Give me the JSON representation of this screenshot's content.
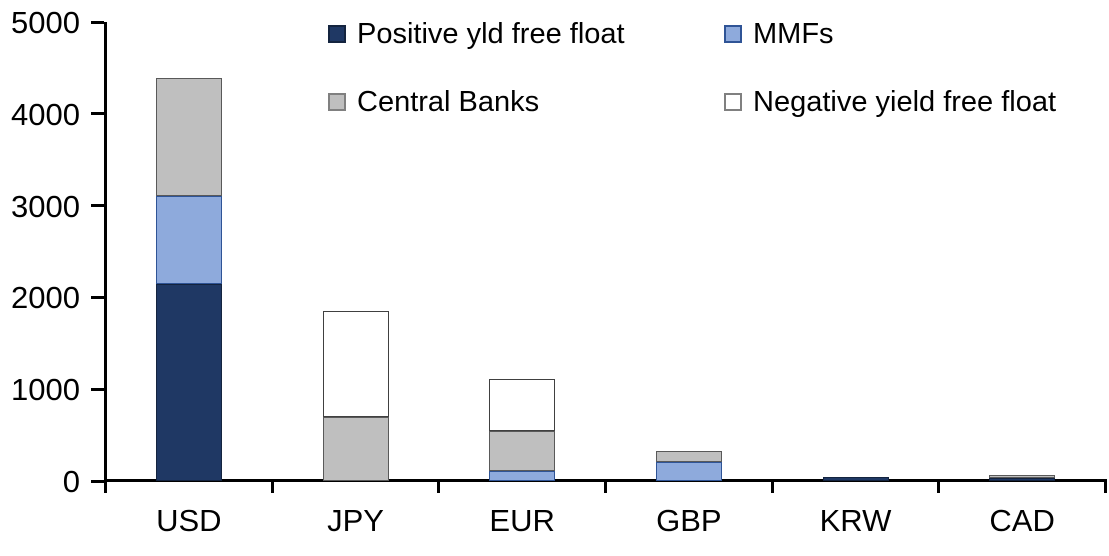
{
  "chart_data": {
    "type": "bar",
    "stacked": true,
    "title": "",
    "xlabel": "",
    "ylabel": "",
    "categories": [
      "USD",
      "JPY",
      "EUR",
      "GBP",
      "KRW",
      "CAD"
    ],
    "series": [
      {
        "name": "Positive yld free float",
        "color": "#1f3864",
        "border_color": "#14243f",
        "values": [
          2150,
          0,
          0,
          0,
          40,
          30
        ]
      },
      {
        "name": "MMFs",
        "color": "#8eaadc",
        "border_color": "#2f5496",
        "values": [
          950,
          0,
          110,
          210,
          0,
          0
        ]
      },
      {
        "name": "Central Banks",
        "color": "#bfbfbf",
        "border_color": "#595959",
        "values": [
          1290,
          700,
          430,
          120,
          0,
          40
        ]
      },
      {
        "name": "Negative yield free float",
        "color": "#ffffff",
        "border_color": "#404040",
        "values": [
          0,
          1150,
          570,
          0,
          0,
          0
        ]
      }
    ],
    "stack_order_bottom_to_top": [
      "Positive yld free float",
      "MMFs",
      "Central Banks",
      "Negative yield free float"
    ],
    "ylim": [
      0,
      5000
    ],
    "y_ticks": [
      0,
      1000,
      2000,
      3000,
      4000,
      5000
    ],
    "y_tick_labels": [
      "0",
      "1000",
      "2000",
      "3000",
      "4000",
      "5000"
    ],
    "grid": false,
    "legend_position": "top",
    "legend": [
      {
        "label": "Positive yld free float",
        "row": 0,
        "col": 0
      },
      {
        "label": "MMFs",
        "row": 0,
        "col": 1
      },
      {
        "label": "Central Banks",
        "row": 1,
        "col": 0
      },
      {
        "label": "Negative yield free float",
        "row": 1,
        "col": 1
      }
    ],
    "colors": {
      "axis": "#000000",
      "text": "#000000",
      "background": "#ffffff"
    }
  }
}
